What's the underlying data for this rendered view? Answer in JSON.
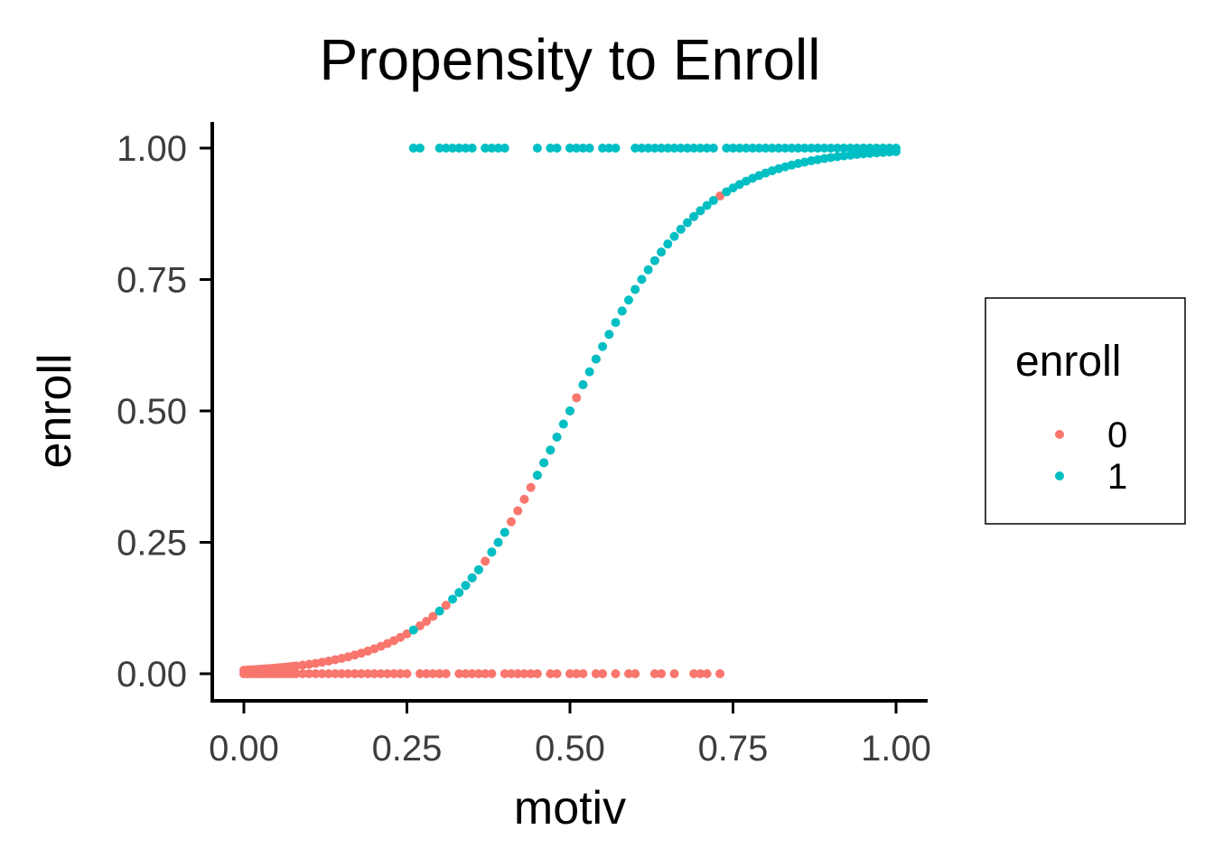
{
  "chart_data": {
    "type": "scatter",
    "title": "Propensity to Enroll",
    "xlabel": "motiv",
    "ylabel": "enroll",
    "xlim": [
      -0.05,
      1.05
    ],
    "ylim": [
      -0.05,
      1.05
    ],
    "x_ticks": [
      0,
      0.25,
      0.5,
      0.75,
      1
    ],
    "x_tick_labels": [
      "0.00",
      "0.25",
      "0.50",
      "0.75",
      "1.00"
    ],
    "y_ticks": [
      0,
      0.25,
      0.5,
      0.75,
      1
    ],
    "y_tick_labels": [
      "0.00",
      "0.25",
      "0.50",
      "0.75",
      "1.00"
    ],
    "grid": false,
    "legend": {
      "title": "enroll",
      "position": "right",
      "entries": [
        {
          "label": "0",
          "color": "#F8766D"
        },
        {
          "label": "1",
          "color": "#00BFC4"
        }
      ]
    },
    "series": [
      {
        "name": "0",
        "color": "#F8766D",
        "observed_motiv": [
          0.0,
          0.005,
          0.01,
          0.015,
          0.02,
          0.025,
          0.03,
          0.035,
          0.04,
          0.045,
          0.05,
          0.055,
          0.06,
          0.065,
          0.07,
          0.075,
          0.08,
          0.09,
          0.1,
          0.11,
          0.12,
          0.13,
          0.14,
          0.15,
          0.16,
          0.17,
          0.18,
          0.19,
          0.2,
          0.21,
          0.22,
          0.23,
          0.24,
          0.25,
          0.27,
          0.28,
          0.29,
          0.3,
          0.31,
          0.33,
          0.34,
          0.35,
          0.36,
          0.37,
          0.38,
          0.4,
          0.41,
          0.42,
          0.43,
          0.44,
          0.45,
          0.47,
          0.48,
          0.5,
          0.51,
          0.52,
          0.54,
          0.55,
          0.57,
          0.59,
          0.6,
          0.63,
          0.64,
          0.66,
          0.69,
          0.7,
          0.71,
          0.73
        ],
        "fitted_motiv": [
          0.0,
          0.005,
          0.01,
          0.015,
          0.02,
          0.025,
          0.03,
          0.035,
          0.04,
          0.045,
          0.05,
          0.055,
          0.06,
          0.065,
          0.07,
          0.075,
          0.08,
          0.09,
          0.1,
          0.11,
          0.12,
          0.13,
          0.14,
          0.15,
          0.16,
          0.17,
          0.18,
          0.19,
          0.2,
          0.21,
          0.22,
          0.23,
          0.24,
          0.25,
          0.27,
          0.28,
          0.29,
          0.3,
          0.31,
          0.33,
          0.34,
          0.35,
          0.36,
          0.37,
          0.38,
          0.39,
          0.4,
          0.41,
          0.42,
          0.43,
          0.44,
          0.45,
          0.46,
          0.47,
          0.48,
          0.5,
          0.51,
          0.52,
          0.54,
          0.56,
          0.58,
          0.6,
          0.63,
          0.64,
          0.67,
          0.69,
          0.7,
          0.73
        ]
      },
      {
        "name": "1",
        "color": "#00BFC4",
        "observed_motiv": [
          0.26,
          0.27,
          0.3,
          0.31,
          0.32,
          0.33,
          0.34,
          0.35,
          0.37,
          0.38,
          0.39,
          0.4,
          0.45,
          0.47,
          0.48,
          0.5,
          0.51,
          0.52,
          0.53,
          0.55,
          0.56,
          0.57,
          0.6,
          0.61,
          0.62,
          0.63,
          0.64,
          0.65,
          0.66,
          0.67,
          0.68,
          0.69,
          0.7,
          0.71,
          0.72,
          0.74,
          0.75,
          0.76,
          0.77,
          0.78,
          0.79,
          0.8,
          0.81,
          0.82,
          0.83,
          0.84,
          0.85,
          0.86,
          0.87,
          0.88,
          0.89,
          0.9,
          0.91,
          0.92,
          0.93,
          0.94,
          0.95,
          0.96,
          0.97,
          0.98,
          0.99,
          1.0
        ],
        "fitted_motiv": [
          0.26,
          0.3,
          0.32,
          0.33,
          0.34,
          0.35,
          0.36,
          0.38,
          0.39,
          0.4,
          0.45,
          0.46,
          0.47,
          0.48,
          0.49,
          0.5,
          0.52,
          0.53,
          0.54,
          0.55,
          0.56,
          0.57,
          0.58,
          0.59,
          0.6,
          0.61,
          0.62,
          0.63,
          0.64,
          0.65,
          0.66,
          0.67,
          0.68,
          0.69,
          0.7,
          0.71,
          0.72,
          0.74,
          0.75,
          0.76,
          0.77,
          0.78,
          0.79,
          0.8,
          0.81,
          0.82,
          0.83,
          0.84,
          0.85,
          0.86,
          0.87,
          0.88,
          0.89,
          0.9,
          0.91,
          0.92,
          0.93,
          0.94,
          0.95,
          0.96,
          0.97,
          0.98,
          0.99,
          1.0
        ]
      }
    ]
  }
}
